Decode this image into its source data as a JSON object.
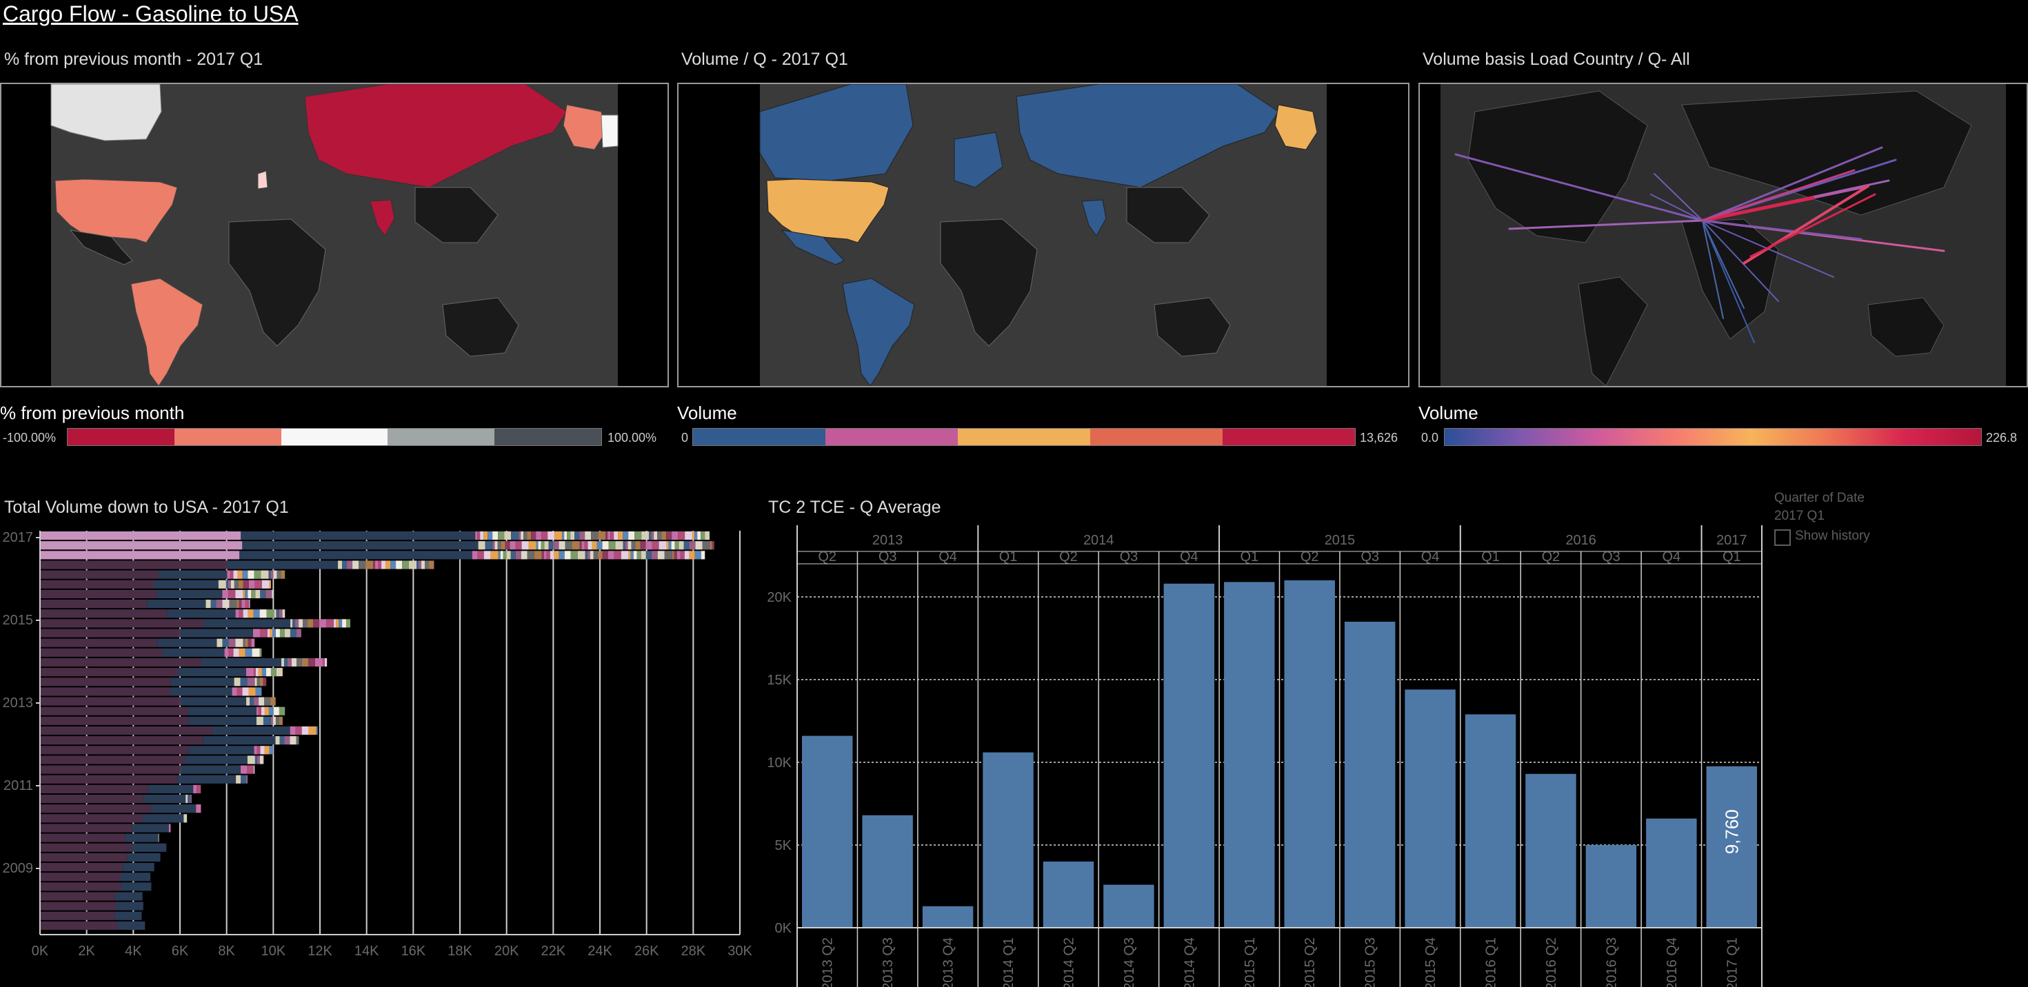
{
  "dashboard": {
    "title": "Cargo Flow - Gasoline to USA"
  },
  "maps": [
    {
      "id": "pct",
      "title": "% from previous month - 2017 Q1"
    },
    {
      "id": "vol",
      "title": "Volume / Q - 2017 Q1"
    },
    {
      "id": "load",
      "title": "Volume basis Load Country / Q- All"
    }
  ],
  "legends": {
    "pct": {
      "title": "% from previous month",
      "min": "-100.00%",
      "max": "100.00%",
      "colors": [
        "#b5163a",
        "#ec7e6a",
        "#f7f7f7",
        "#a0a6a6",
        "#4a5057"
      ]
    },
    "vol": {
      "title": "Volume",
      "min": "0",
      "max": "13,626",
      "colors": [
        "#325b8f",
        "#c25b98",
        "#efb05a",
        "#e06950",
        "#bd1b42"
      ]
    },
    "load": {
      "title": "Volume",
      "min": "0.0",
      "max": "226.8",
      "colors": [
        "#2b4f99",
        "#8058b0",
        "#d15a9c",
        "#f67b70",
        "#f7b459",
        "#ef7455",
        "#d7254f",
        "#b5163a"
      ]
    }
  },
  "filter": {
    "title": "Quarter of Date",
    "value": "2017 Q1",
    "checkbox_label": "Show history"
  },
  "chart_data": [
    {
      "type": "bar",
      "orientation": "horizontal",
      "stacked": true,
      "title": "Total Volume down to USA - 2017 Q1",
      "xlabel": "",
      "ylabel": "",
      "xlim": [
        0,
        30000
      ],
      "x_ticks": [
        "0K",
        "2K",
        "4K",
        "6K",
        "8K",
        "10K",
        "12K",
        "14K",
        "16K",
        "18K",
        "20K",
        "22K",
        "24K",
        "26K",
        "28K",
        "30K"
      ],
      "y_labels": [
        "2017",
        "2015",
        "2013",
        "2011",
        "2009"
      ],
      "row_totals": [
        28700,
        28900,
        28500,
        16900,
        10500,
        9900,
        10000,
        9000,
        10500,
        13300,
        11200,
        9200,
        9500,
        12300,
        10400,
        9700,
        9500,
        10100,
        10500,
        10400,
        11900,
        11100,
        10000,
        9600,
        9200,
        8900,
        6900,
        6500,
        6900,
        6300,
        5600,
        5100,
        5400,
        5100,
        4800,
        4600,
        4600,
        4200,
        4200,
        4100,
        4200
      ]
    },
    {
      "type": "bar",
      "title": "TC 2 TCE - Q Average",
      "xlabel": "",
      "ylabel": "",
      "ylim": [
        0,
        22000
      ],
      "y_ticks": [
        "0K",
        "5K",
        "10K",
        "15K",
        "20K"
      ],
      "year_groups": [
        {
          "year": "2013",
          "count": 3
        },
        {
          "year": "2014",
          "count": 4
        },
        {
          "year": "2015",
          "count": 4
        },
        {
          "year": "2016",
          "count": 4
        },
        {
          "year": "2017",
          "count": 1
        }
      ],
      "quarters": [
        "Q2",
        "Q3",
        "Q4",
        "Q1",
        "Q2",
        "Q3",
        "Q4",
        "Q1",
        "Q2",
        "Q3",
        "Q4",
        "Q1",
        "Q2",
        "Q3",
        "Q4",
        "Q1"
      ],
      "categories": [
        "2013 Q2",
        "2013 Q3",
        "2013 Q4",
        "2014 Q1",
        "2014 Q2",
        "2014 Q3",
        "2014 Q4",
        "2015 Q1",
        "2015 Q2",
        "2015 Q3",
        "2015 Q4",
        "2016 Q1",
        "2016 Q2",
        "2016 Q3",
        "2016 Q4",
        "2017 Q1"
      ],
      "values": [
        11600,
        6800,
        1300,
        10600,
        4000,
        2600,
        20800,
        20900,
        21000,
        18500,
        14400,
        12900,
        9300,
        5000,
        6600,
        9760
      ],
      "data_labels": [
        {
          "category": "2017 Q1",
          "text": "9,760"
        }
      ]
    }
  ]
}
